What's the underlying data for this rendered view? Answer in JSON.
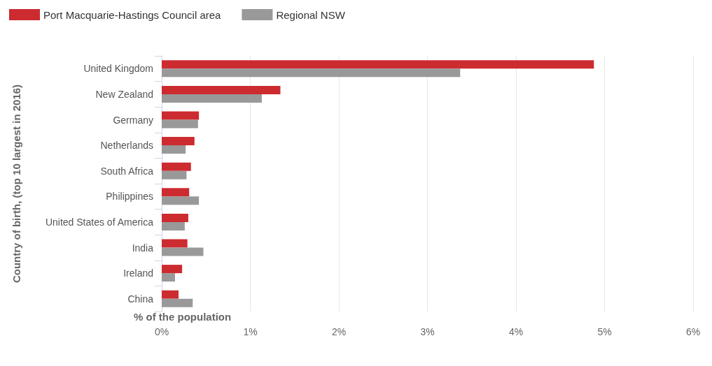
{
  "chart_data": {
    "type": "bar",
    "orientation": "horizontal",
    "categories": [
      "United Kingdom",
      "New Zealand",
      "Germany",
      "Netherlands",
      "South Africa",
      "Philippines",
      "United States of America",
      "India",
      "Ireland",
      "China"
    ],
    "series": [
      {
        "name": "Port Macquarie-Hastings Council area",
        "color": "#cc2b30",
        "values": [
          4.88,
          1.34,
          0.42,
          0.37,
          0.33,
          0.31,
          0.3,
          0.29,
          0.23,
          0.19
        ]
      },
      {
        "name": "Regional NSW",
        "color": "#999999",
        "values": [
          3.37,
          1.13,
          0.41,
          0.27,
          0.28,
          0.42,
          0.26,
          0.47,
          0.15,
          0.35
        ]
      }
    ],
    "xlabel": "% of the population",
    "ylabel": "Country of birth, (top 10 largest in 2016)",
    "xlim": [
      0,
      6
    ],
    "xticks": [
      {
        "value": 0,
        "label": "0%"
      },
      {
        "value": 1,
        "label": "1%"
      },
      {
        "value": 2,
        "label": "2%"
      },
      {
        "value": 3,
        "label": "3%"
      },
      {
        "value": 4,
        "label": "4%"
      },
      {
        "value": 5,
        "label": "5%"
      },
      {
        "value": 6,
        "label": "6%"
      }
    ],
    "grid": "x",
    "legend": "top left"
  }
}
